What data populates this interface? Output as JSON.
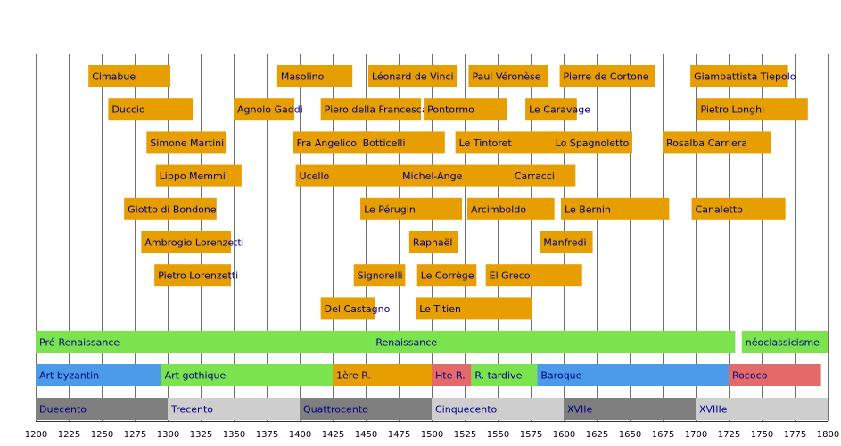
{
  "chart_data": {
    "type": "timeline",
    "title": "",
    "xlim": [
      1200,
      1800
    ],
    "x_ticks": [
      1200,
      1225,
      1250,
      1275,
      1300,
      1325,
      1350,
      1375,
      1400,
      1425,
      1450,
      1475,
      1500,
      1525,
      1550,
      1575,
      1600,
      1625,
      1650,
      1675,
      1700,
      1725,
      1750,
      1775,
      1800
    ],
    "grid": true,
    "colors": {
      "artist": "#E69E00",
      "movement": "#7AE34D",
      "byzantine": "#4B9BE8",
      "late_renaissance": "#E46A6A",
      "century_dark": "#7F7F7F",
      "century_light": "#CECECE",
      "label": "#000080",
      "grid": "#707070"
    },
    "artists": [
      {
        "name": "Cimabue",
        "start": 1240,
        "end": 1302,
        "row": 0
      },
      {
        "name": "Masolino",
        "start": 1383,
        "end": 1440,
        "row": 0
      },
      {
        "name": "Léonard de Vinci",
        "start": 1452,
        "end": 1519,
        "row": 0
      },
      {
        "name": "Paul Véronèse",
        "start": 1528,
        "end": 1588,
        "row": 0
      },
      {
        "name": "Pierre de Cortone",
        "start": 1597,
        "end": 1669,
        "row": 0
      },
      {
        "name": "Giambattista Tiepolo",
        "start": 1696,
        "end": 1770,
        "row": 0
      },
      {
        "name": "Duccio",
        "start": 1255,
        "end": 1319,
        "row": 1
      },
      {
        "name": "Agnolo Gaddi",
        "start": 1350,
        "end": 1396,
        "row": 1
      },
      {
        "name": "Piero della Francesca",
        "start": 1416,
        "end": 1492,
        "row": 1
      },
      {
        "name": "Pontormo",
        "start": 1494,
        "end": 1557,
        "row": 1
      },
      {
        "name": "Le Caravage",
        "start": 1571,
        "end": 1610,
        "row": 1
      },
      {
        "name": "Pietro Longhi",
        "start": 1701,
        "end": 1785,
        "row": 1
      },
      {
        "name": "Simone Martini",
        "start": 1284,
        "end": 1344,
        "row": 2
      },
      {
        "name": "Fra Angelico",
        "start": 1395,
        "end": 1455,
        "row": 2
      },
      {
        "name": "Botticelli",
        "start": 1445,
        "end": 1510,
        "row": 2
      },
      {
        "name": "Le Tintoret",
        "start": 1518,
        "end": 1594,
        "row": 2
      },
      {
        "name": "Lo Spagnoletto",
        "start": 1591,
        "end": 1652,
        "row": 2
      },
      {
        "name": "Rosalba Carriera",
        "start": 1675,
        "end": 1757,
        "row": 2
      },
      {
        "name": "Lippo Memmi",
        "start": 1291,
        "end": 1356,
        "row": 3
      },
      {
        "name": "Ucello",
        "start": 1397,
        "end": 1475,
        "row": 3
      },
      {
        "name": "Michel-Ange",
        "start": 1475,
        "end": 1564,
        "row": 3
      },
      {
        "name": "Carracci",
        "start": 1560,
        "end": 1609,
        "row": 3
      },
      {
        "name": "Giotto di Bondone",
        "start": 1267,
        "end": 1337,
        "row": 4
      },
      {
        "name": "Le Pérugin",
        "start": 1446,
        "end": 1523,
        "row": 4
      },
      {
        "name": "Arcimboldo",
        "start": 1527,
        "end": 1593,
        "row": 4
      },
      {
        "name": "Le Bernin",
        "start": 1598,
        "end": 1680,
        "row": 4
      },
      {
        "name": "Canaletto",
        "start": 1697,
        "end": 1768,
        "row": 4
      },
      {
        "name": "Ambrogio Lorenzetti",
        "start": 1280,
        "end": 1348,
        "row": 5
      },
      {
        "name": "Raphaël",
        "start": 1483,
        "end": 1520,
        "row": 5
      },
      {
        "name": "Manfredi",
        "start": 1582,
        "end": 1622,
        "row": 5
      },
      {
        "name": "Pietro Lorenzetti",
        "start": 1290,
        "end": 1348,
        "row": 6
      },
      {
        "name": "Signorelli",
        "start": 1441,
        "end": 1480,
        "row": 6
      },
      {
        "name": "Le Corrège",
        "start": 1489,
        "end": 1534,
        "row": 6
      },
      {
        "name": "El Greco",
        "start": 1541,
        "end": 1614,
        "row": 6
      },
      {
        "name": "Del Castagno",
        "start": 1416,
        "end": 1457,
        "row": 7
      },
      {
        "name": "Le Titien",
        "start": 1488,
        "end": 1576,
        "row": 7
      }
    ],
    "movements": [
      {
        "name": "Pré-Renaissance",
        "start": 1200,
        "end": 1455,
        "color": "movement"
      },
      {
        "name": "Renaissance",
        "start": 1455,
        "end": 1730,
        "color": "movement"
      },
      {
        "name": "néoclassicisme",
        "start": 1735,
        "end": 1800,
        "color": "movement"
      }
    ],
    "styles": [
      {
        "name": "Art byzantin",
        "start": 1200,
        "end": 1295,
        "color": "byzantine"
      },
      {
        "name": "Art gothique",
        "start": 1295,
        "end": 1425,
        "color": "movement"
      },
      {
        "name": "1ère R.",
        "start": 1425,
        "end": 1500,
        "color": "artist"
      },
      {
        "name": "Hte R.",
        "start": 1500,
        "end": 1530,
        "color": "late_renaissance"
      },
      {
        "name": "R. tardive",
        "start": 1530,
        "end": 1580,
        "color": "movement"
      },
      {
        "name": "Baroque",
        "start": 1580,
        "end": 1725,
        "color": "byzantine"
      },
      {
        "name": "Rococo",
        "start": 1725,
        "end": 1795,
        "color": "late_renaissance"
      }
    ],
    "centuries": [
      {
        "name": "Duecento",
        "start": 1200,
        "end": 1300,
        "color": "century_dark"
      },
      {
        "name": "Trecento",
        "start": 1300,
        "end": 1400,
        "color": "century_light"
      },
      {
        "name": "Quattrocento",
        "start": 1400,
        "end": 1500,
        "color": "century_dark"
      },
      {
        "name": "Cinquecento",
        "start": 1500,
        "end": 1600,
        "color": "century_light"
      },
      {
        "name": "XVIIe",
        "start": 1600,
        "end": 1700,
        "color": "century_dark"
      },
      {
        "name": "XVIIIe",
        "start": 1700,
        "end": 1800,
        "color": "century_light"
      }
    ]
  }
}
